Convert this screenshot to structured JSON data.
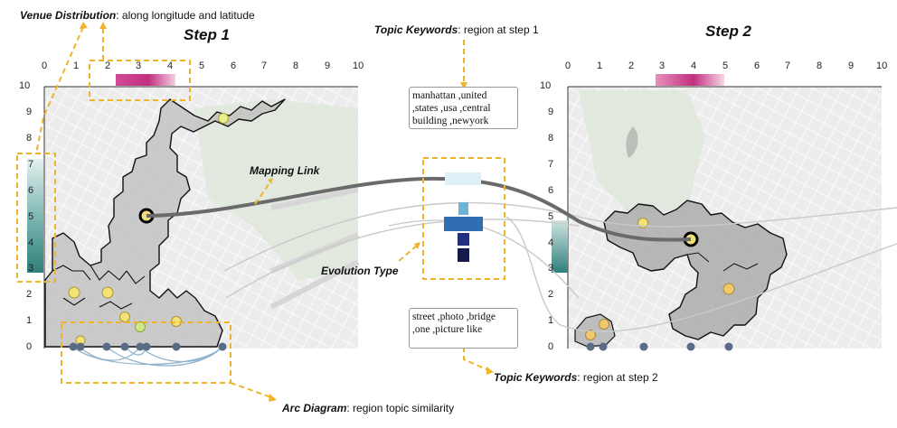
{
  "annotations": {
    "venue_title": "Venue Distribution",
    "venue_desc": ": along longitude and latitude",
    "topic_step1_title": "Topic Keywords",
    "topic_step1_desc": ": region at step 1",
    "mapping_link": "Mapping Link",
    "evolution_type": "Evolution Type",
    "topic_step2_title": "Topic Keywords",
    "topic_step2_desc": ": region at step 2",
    "arc_title": "Arc Diagram",
    "arc_desc": ": region topic similarity"
  },
  "steps": {
    "step1": "Step 1",
    "step2": "Step 2"
  },
  "axis_ticks": [
    "0",
    "1",
    "2",
    "3",
    "4",
    "5",
    "6",
    "7",
    "8",
    "9",
    "10"
  ],
  "keywords": {
    "step1": "manhattan ,united ,states ,usa ,central building ,newyork",
    "step2": "street ,photo ,bridge ,one ,picture like"
  },
  "colors": {
    "magenta": "#c2307f",
    "teal": "#2e7f7a",
    "hex_fill": "#b9b9b9",
    "venue_dot": "#f0e07a",
    "arc_dot": "#5a6b86",
    "link": "#6a6a6a",
    "dash": "#f0b429"
  },
  "evolution_blocks": [
    "#dff0f7",
    "#6fb3d6",
    "#2f6fb1",
    "#22307f",
    "#141b4a"
  ]
}
